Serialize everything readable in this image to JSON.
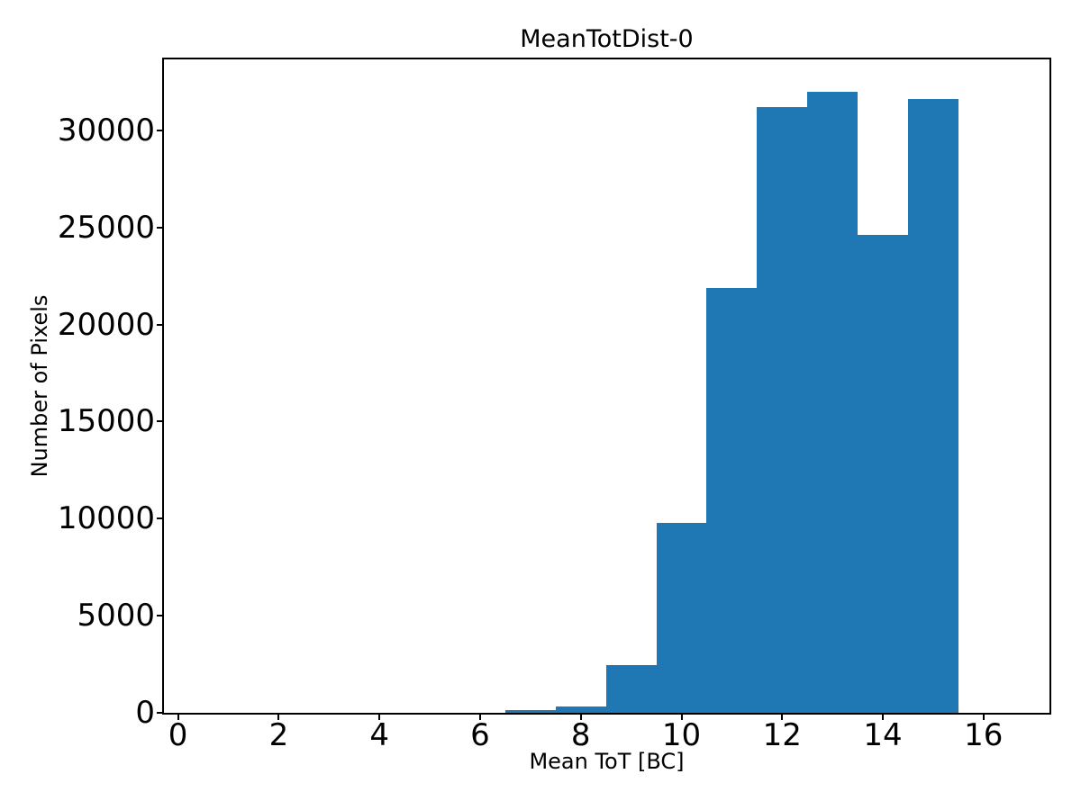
{
  "figure": {
    "background_color": "#ffffff",
    "text_color": "#000000"
  },
  "chart_data": {
    "type": "bar",
    "subtype": "histogram",
    "title": "MeanTotDist-0",
    "xlabel": "Mean ToT [BC]",
    "ylabel": "Number of Pixels",
    "bar_color": "#1f77b4",
    "bin_edges": [
      0.5,
      1.5,
      2.5,
      3.5,
      4.5,
      5.5,
      6.5,
      7.5,
      8.5,
      9.5,
      10.5,
      11.5,
      12.5,
      13.5,
      14.5,
      15.5,
      16.5
    ],
    "counts": [
      0,
      0,
      0,
      0,
      0,
      0,
      130,
      310,
      2450,
      9800,
      21900,
      31200,
      32000,
      24600,
      31600,
      0
    ],
    "xticks": [
      0,
      2,
      4,
      6,
      8,
      10,
      12,
      14,
      16
    ],
    "yticks": [
      0,
      5000,
      10000,
      15000,
      20000,
      25000,
      30000
    ],
    "xlim": [
      -0.28,
      17.31
    ],
    "ylim": [
      0,
      33650
    ],
    "grid": false,
    "legend": null
  }
}
